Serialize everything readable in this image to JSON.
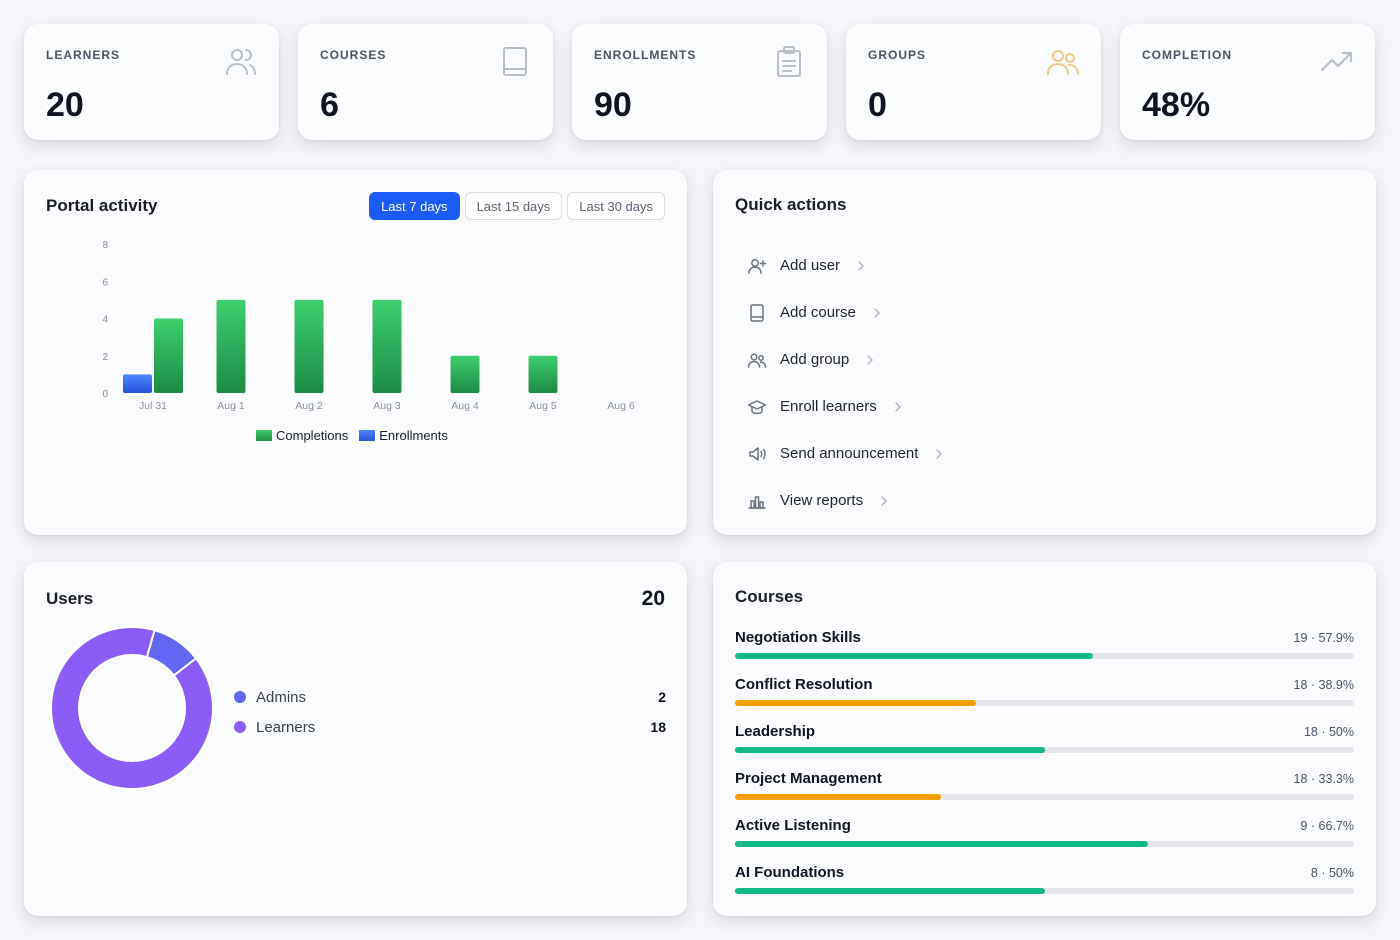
{
  "stats": [
    {
      "label": "LEARNERS",
      "value": "20",
      "icon": "users-icon",
      "icon_color": "#b9bdc6"
    },
    {
      "label": "COURSES",
      "value": "6",
      "icon": "book-icon",
      "icon_color": "#b9bdc6"
    },
    {
      "label": "ENROLLMENTS",
      "value": "90",
      "icon": "clipboard-icon",
      "icon_color": "#b9bdc6"
    },
    {
      "label": "GROUPS",
      "value": "0",
      "icon": "group-icon",
      "icon_color": "#f0c987"
    },
    {
      "label": "COMPLETION",
      "value": "48%",
      "icon": "trending-up-icon",
      "icon_color": "#b9bdc6"
    }
  ],
  "activity": {
    "title": "Portal activity",
    "ranges": [
      "Last 7 days",
      "Last 15 days",
      "Last 30 days"
    ],
    "active_range": "Last 7 days"
  },
  "chart_data": {
    "type": "bar",
    "categories": [
      "Jul 31",
      "Aug 1",
      "Aug 2",
      "Aug 3",
      "Aug 4",
      "Aug 5",
      "Aug 6"
    ],
    "series": [
      {
        "name": "Completions",
        "values": [
          4,
          5,
          5,
          5,
          2,
          2,
          0
        ],
        "color": "#23a85a"
      },
      {
        "name": "Enrollments",
        "values": [
          1,
          0,
          0,
          0,
          0,
          0,
          0
        ],
        "color": "#2f6bf0"
      }
    ],
    "y_ticks": [
      "0",
      "2",
      "4",
      "6",
      "8"
    ],
    "ylim": [
      0,
      8
    ],
    "legend": "bottom-center"
  },
  "quick_actions": {
    "title": "Quick actions",
    "items": [
      {
        "label": "Add user",
        "icon": "user-plus-icon"
      },
      {
        "label": "Add course",
        "icon": "book-icon"
      },
      {
        "label": "Add group",
        "icon": "group-icon"
      },
      {
        "label": "Enroll learners",
        "icon": "graduation-cap-icon"
      },
      {
        "label": "Send announcement",
        "icon": "megaphone-icon"
      },
      {
        "label": "View reports",
        "icon": "bar-chart-icon"
      }
    ]
  },
  "users": {
    "title": "Users",
    "total": "20",
    "segments": [
      {
        "label": "Admins",
        "count": "2",
        "value": 2,
        "color": "#6366f1"
      },
      {
        "label": "Learners",
        "count": "18",
        "value": 18,
        "color": "#8b5cf6"
      }
    ]
  },
  "courses": {
    "title": "Courses",
    "items": [
      {
        "name": "Negotiation Skills",
        "stats": "19 · 57.9%",
        "percent": 57.9,
        "color": "#12b886"
      },
      {
        "name": "Conflict Resolution",
        "stats": "18 · 38.9%",
        "percent": 38.9,
        "color": "#f59f00"
      },
      {
        "name": "Leadership",
        "stats": "18 · 50%",
        "percent": 50,
        "color": "#12b886"
      },
      {
        "name": "Project Management",
        "stats": "18 · 33.3%",
        "percent": 33.3,
        "color": "#f59f00"
      },
      {
        "name": "Active Listening",
        "stats": "9 · 66.7%",
        "percent": 66.7,
        "color": "#12b886"
      },
      {
        "name": "AI Foundations",
        "stats": "8 · 50%",
        "percent": 50,
        "color": "#12b886"
      }
    ]
  }
}
